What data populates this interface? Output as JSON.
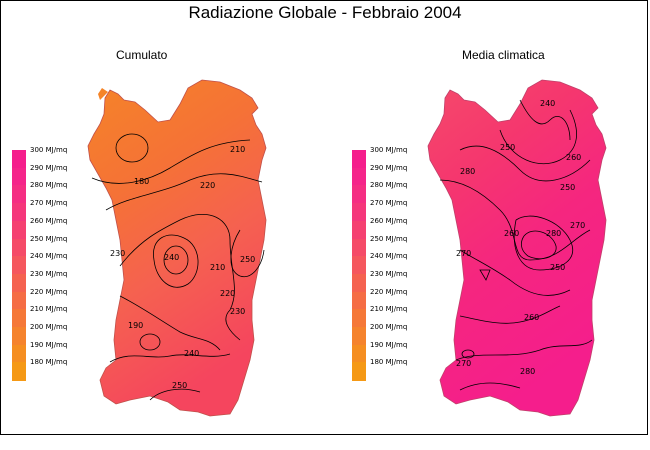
{
  "title": "Radiazione Globale - Febbraio 2004",
  "panels": [
    {
      "title": "Cumulato",
      "legend": [
        "300 MJ/mq",
        "290 MJ/mq",
        "280 MJ/mq",
        "270 MJ/mq",
        "260 MJ/mq",
        "250 MJ/mq",
        "240 MJ/mq",
        "230 MJ/mq",
        "220 MJ/mq",
        "210 MJ/mq",
        "200 MJ/mq",
        "190 MJ/mq",
        "180 MJ/mq"
      ],
      "contour_labels": [
        "210",
        "180",
        "220",
        "230",
        "240",
        "250",
        "210",
        "220",
        "230",
        "190",
        "240",
        "250"
      ]
    },
    {
      "title": "Media climatica",
      "legend": [
        "300 MJ/mq",
        "290 MJ/mq",
        "280 MJ/mq",
        "270 MJ/mq",
        "260 MJ/mq",
        "250 MJ/mq",
        "240 MJ/mq",
        "230 MJ/mq",
        "220 MJ/mq",
        "210 MJ/mq",
        "200 MJ/mq",
        "190 MJ/mq",
        "180 MJ/mq"
      ],
      "contour_labels": [
        "240",
        "250",
        "260",
        "280",
        "250",
        "270",
        "280",
        "260",
        "250",
        "270",
        "260",
        "270",
        "280"
      ]
    }
  ],
  "legend_colors": [
    "#f51e8c",
    "#f5258a",
    "#f52e83",
    "#f5377b",
    "#f54171",
    "#f54b68",
    "#f5575e",
    "#f56250",
    "#f56d45",
    "#f57838",
    "#f5832d",
    "#f58e21",
    "#f59915"
  ]
}
